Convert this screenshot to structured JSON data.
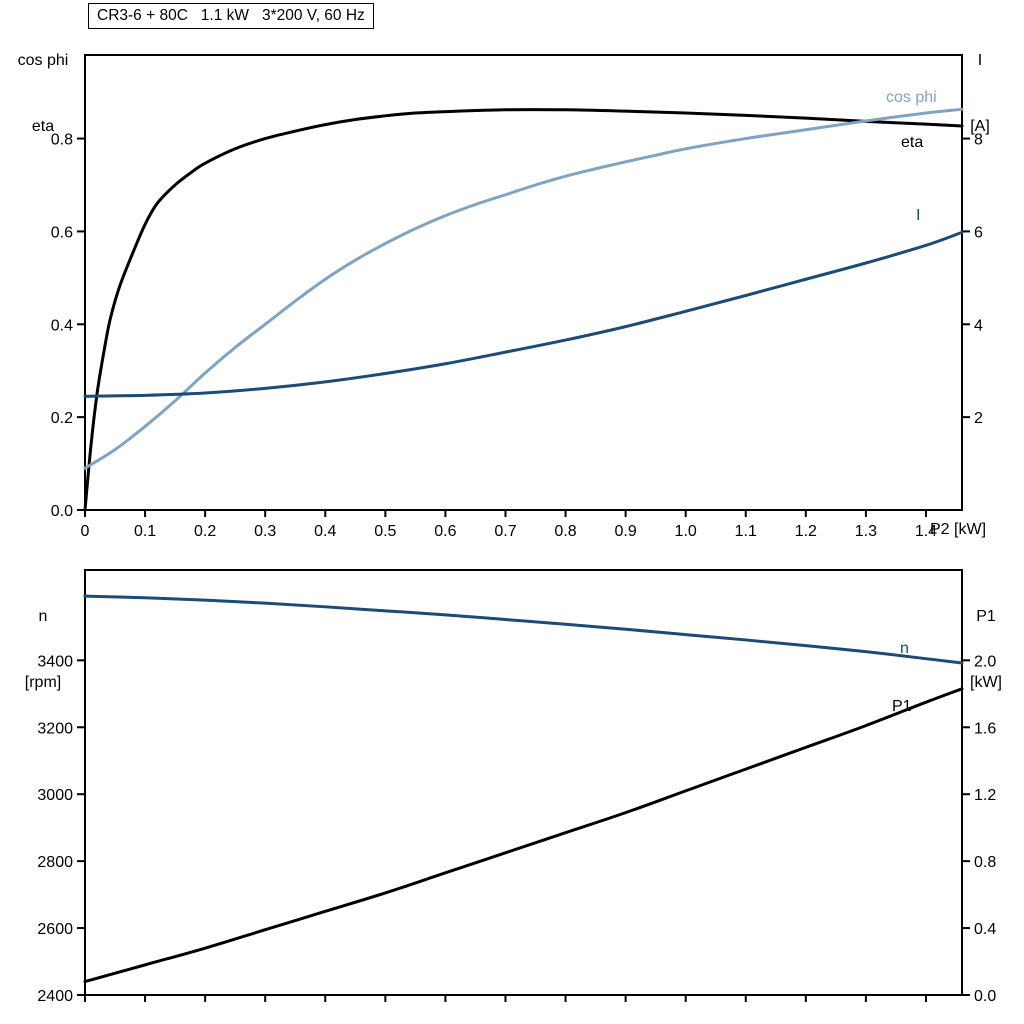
{
  "page": {
    "background": "#ffffff"
  },
  "colors": {
    "black": "#000000",
    "dark_blue": "#1b4b76",
    "light_blue": "#7fa3c4"
  },
  "chart_data": [
    {
      "id": "motor-electrical",
      "type": "line",
      "title": "CR3-6 + 80C   1.1 kW   3*200 V, 60 Hz",
      "x": {
        "label": "P2 [kW]",
        "range": [
          0,
          1.46
        ],
        "show_labels": true,
        "ticks": [
          "0",
          "0.1",
          "0.2",
          "0.3",
          "0.4",
          "0.5",
          "0.6",
          "0.7",
          "0.8",
          "0.9",
          "1.0",
          "1.1",
          "1.2",
          "1.3",
          "1.4"
        ]
      },
      "y_left": {
        "title_lines": [
          "cos phi",
          "eta"
        ],
        "range": [
          0,
          0.98
        ],
        "ticks": [
          "0.0",
          "0.2",
          "0.4",
          "0.6",
          "0.8"
        ]
      },
      "y_right": {
        "title_lines": [
          "I",
          "[A]"
        ],
        "range": [
          0,
          9.8
        ],
        "ticks": [
          "2",
          "4",
          "6",
          "8"
        ]
      },
      "series": [
        {
          "name": "eta",
          "axis": "left",
          "color": "#000000",
          "points": [
            [
              0,
              0
            ],
            [
              0.01,
              0.14
            ],
            [
              0.02,
              0.25
            ],
            [
              0.03,
              0.33
            ],
            [
              0.04,
              0.4
            ],
            [
              0.05,
              0.45
            ],
            [
              0.06,
              0.49
            ],
            [
              0.08,
              0.555
            ],
            [
              0.1,
              0.615
            ],
            [
              0.12,
              0.66
            ],
            [
              0.15,
              0.7
            ],
            [
              0.18,
              0.73
            ],
            [
              0.2,
              0.747
            ],
            [
              0.25,
              0.778
            ],
            [
              0.3,
              0.8
            ],
            [
              0.35,
              0.816
            ],
            [
              0.4,
              0.83
            ],
            [
              0.45,
              0.841
            ],
            [
              0.5,
              0.849
            ],
            [
              0.55,
              0.855
            ],
            [
              0.6,
              0.858
            ],
            [
              0.7,
              0.862
            ],
            [
              0.8,
              0.862
            ],
            [
              0.9,
              0.859
            ],
            [
              1.0,
              0.855
            ],
            [
              1.1,
              0.85
            ],
            [
              1.2,
              0.844
            ],
            [
              1.3,
              0.837
            ],
            [
              1.4,
              0.831
            ],
            [
              1.46,
              0.827
            ]
          ]
        },
        {
          "name": "cos phi",
          "axis": "left",
          "color": "#7fa3c4",
          "points": [
            [
              0,
              0.09
            ],
            [
              0.05,
              0.13
            ],
            [
              0.1,
              0.18
            ],
            [
              0.15,
              0.235
            ],
            [
              0.2,
              0.295
            ],
            [
              0.25,
              0.35
            ],
            [
              0.3,
              0.4
            ],
            [
              0.35,
              0.45
            ],
            [
              0.4,
              0.497
            ],
            [
              0.45,
              0.538
            ],
            [
              0.5,
              0.574
            ],
            [
              0.55,
              0.606
            ],
            [
              0.6,
              0.634
            ],
            [
              0.65,
              0.658
            ],
            [
              0.7,
              0.679
            ],
            [
              0.75,
              0.7
            ],
            [
              0.8,
              0.719
            ],
            [
              0.85,
              0.735
            ],
            [
              0.9,
              0.75
            ],
            [
              0.95,
              0.764
            ],
            [
              1.0,
              0.778
            ],
            [
              1.1,
              0.8
            ],
            [
              1.2,
              0.819
            ],
            [
              1.3,
              0.838
            ],
            [
              1.4,
              0.855
            ],
            [
              1.46,
              0.863
            ]
          ]
        },
        {
          "name": "I",
          "axis": "right",
          "color": "#1b4b76",
          "points": [
            [
              0,
              2.45
            ],
            [
              0.1,
              2.47
            ],
            [
              0.2,
              2.52
            ],
            [
              0.3,
              2.62
            ],
            [
              0.4,
              2.76
            ],
            [
              0.5,
              2.94
            ],
            [
              0.6,
              3.15
            ],
            [
              0.7,
              3.4
            ],
            [
              0.8,
              3.66
            ],
            [
              0.9,
              3.95
            ],
            [
              1.0,
              4.28
            ],
            [
              1.1,
              4.62
            ],
            [
              1.2,
              4.97
            ],
            [
              1.3,
              5.32
            ],
            [
              1.4,
              5.7
            ],
            [
              1.46,
              5.98
            ]
          ]
        }
      ]
    },
    {
      "id": "motor-speed-power",
      "type": "line",
      "x": {
        "label": "",
        "range": [
          0,
          1.46
        ],
        "show_labels": false,
        "ticks": [
          "0",
          "0.1",
          "0.2",
          "0.3",
          "0.4",
          "0.5",
          "0.6",
          "0.7",
          "0.8",
          "0.9",
          "1.0",
          "1.1",
          "1.2",
          "1.3",
          "1.4"
        ]
      },
      "y_left": {
        "title_lines": [
          "n",
          "[rpm]"
        ],
        "range": [
          2400,
          3670
        ],
        "ticks": [
          "2400",
          "2600",
          "2800",
          "3000",
          "3200",
          "3400"
        ]
      },
      "y_right": {
        "title_lines": [
          "P1",
          "[kW]"
        ],
        "range": [
          0,
          2.54
        ],
        "ticks": [
          "0.0",
          "0.4",
          "0.8",
          "1.2",
          "1.6",
          "2.0"
        ]
      },
      "series": [
        {
          "name": "n",
          "axis": "left",
          "color": "#1b4b76",
          "points": [
            [
              0,
              3592
            ],
            [
              0.1,
              3587
            ],
            [
              0.2,
              3580
            ],
            [
              0.3,
              3571
            ],
            [
              0.4,
              3560
            ],
            [
              0.5,
              3548
            ],
            [
              0.6,
              3536
            ],
            [
              0.7,
              3522
            ],
            [
              0.8,
              3508
            ],
            [
              0.9,
              3493
            ],
            [
              1.0,
              3477
            ],
            [
              1.1,
              3461
            ],
            [
              1.2,
              3444
            ],
            [
              1.3,
              3426
            ],
            [
              1.4,
              3405
            ],
            [
              1.46,
              3392
            ]
          ]
        },
        {
          "name": "P1",
          "axis": "right",
          "color": "#000000",
          "points": [
            [
              0,
              0.08
            ],
            [
              0.1,
              0.18
            ],
            [
              0.2,
              0.28
            ],
            [
              0.3,
              0.39
            ],
            [
              0.4,
              0.5
            ],
            [
              0.5,
              0.61
            ],
            [
              0.6,
              0.73
            ],
            [
              0.7,
              0.85
            ],
            [
              0.8,
              0.97
            ],
            [
              0.9,
              1.09
            ],
            [
              1.0,
              1.22
            ],
            [
              1.1,
              1.35
            ],
            [
              1.2,
              1.48
            ],
            [
              1.3,
              1.61
            ],
            [
              1.4,
              1.75
            ],
            [
              1.46,
              1.83
            ]
          ]
        }
      ]
    }
  ]
}
